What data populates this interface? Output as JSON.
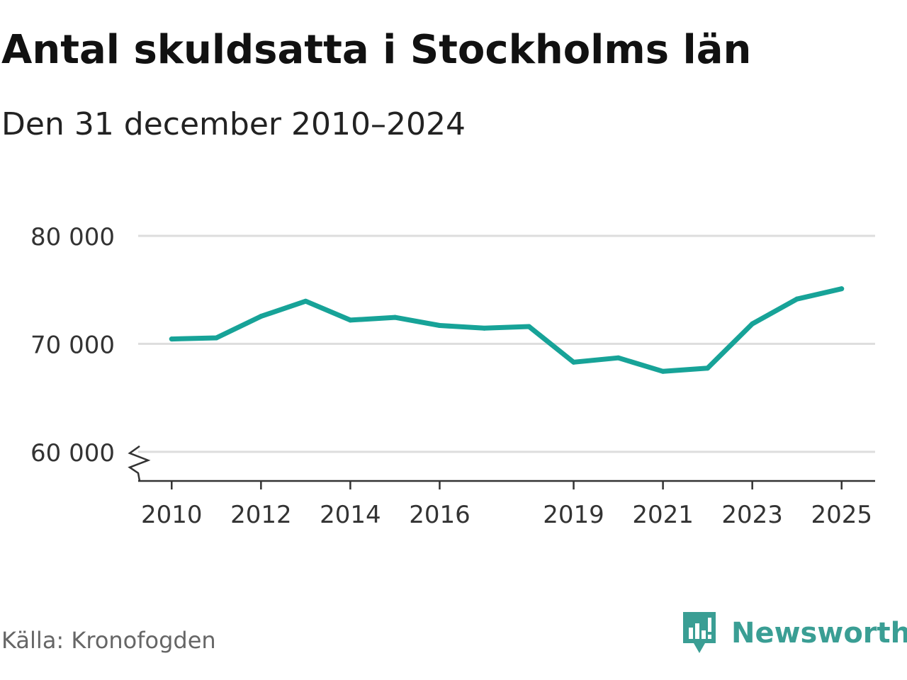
{
  "title": "Antal skuldsatta i Stockholms län",
  "subtitle": "Den 31 december 2010–2024",
  "source": "Källa: Kronofogden",
  "brand": {
    "name": "Newsworthy",
    "icon": "newsworthy-logo-icon",
    "color": "#3a9e94"
  },
  "colors": {
    "line": "#17a398",
    "grid": "#dddddd",
    "axis": "#333333",
    "text": "#333333"
  },
  "chart_data": {
    "type": "line",
    "title": "Antal skuldsatta i Stockholms län",
    "subtitle": "Den 31 december 2010–2024",
    "xlabel": "",
    "ylabel": "",
    "x": [
      2010,
      2011,
      2012,
      2013,
      2014,
      2015,
      2016,
      2017,
      2018,
      2019,
      2020,
      2021,
      2022,
      2023,
      2024,
      2025
    ],
    "series": [
      {
        "name": "Antal skuldsatta",
        "values": [
          70450,
          70550,
          72550,
          73950,
          72200,
          72450,
          71700,
          71450,
          71600,
          68300,
          68700,
          67450,
          67750,
          71850,
          74150,
          75100
        ]
      }
    ],
    "xlim": [
      2009.25,
      2025.75
    ],
    "ylim": [
      57300,
      80000
    ],
    "axis_break": true,
    "grid": true,
    "x_ticks": [
      2010,
      2012,
      2014,
      2016,
      2019,
      2021,
      2023,
      2025
    ],
    "x_tick_labels": [
      "2010",
      "2012",
      "2014",
      "2016",
      "2019",
      "2021",
      "2023",
      "2025"
    ],
    "y_ticks": [
      60000,
      70000,
      80000
    ],
    "y_tick_labels": [
      "60 000",
      "70 000",
      "80 000"
    ]
  }
}
